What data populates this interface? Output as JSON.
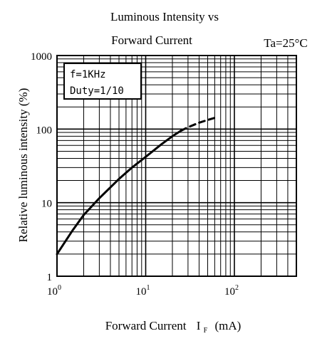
{
  "chart_data": {
    "type": "line",
    "title_line1": "Luminous Intensity vs",
    "title_line2": "Forward Current",
    "condition": "Ta=25°C",
    "xlabel": "Forward Current",
    "xlabel_symbol": "I",
    "xlabel_sub": "F",
    "xlabel_unit": "(mA)",
    "ylabel": "Relative luminous intensity (%)",
    "x_scale": "log",
    "y_scale": "log",
    "xlim": [
      1,
      500
    ],
    "ylim": [
      1,
      1000
    ],
    "x_ticks": [
      {
        "base": "10",
        "exp": "0"
      },
      {
        "base": "10",
        "exp": "1"
      },
      {
        "base": "10",
        "exp": "2"
      }
    ],
    "y_ticks": [
      "1000",
      "100",
      "10",
      "1"
    ],
    "grid": true,
    "legend_box": [
      "f=1KHz",
      "Duty=1/10"
    ],
    "series": [
      {
        "style": "solid",
        "x": [
          1,
          1.5,
          2,
          3,
          5,
          7,
          10,
          15,
          20,
          25
        ],
        "y": [
          2,
          4.2,
          6.8,
          11.5,
          21,
          30,
          42,
          62,
          80,
          95
        ]
      },
      {
        "style": "dashed",
        "x": [
          25,
          30,
          40,
          50,
          60
        ],
        "y": [
          95,
          106,
          122,
          133,
          142
        ]
      }
    ]
  }
}
